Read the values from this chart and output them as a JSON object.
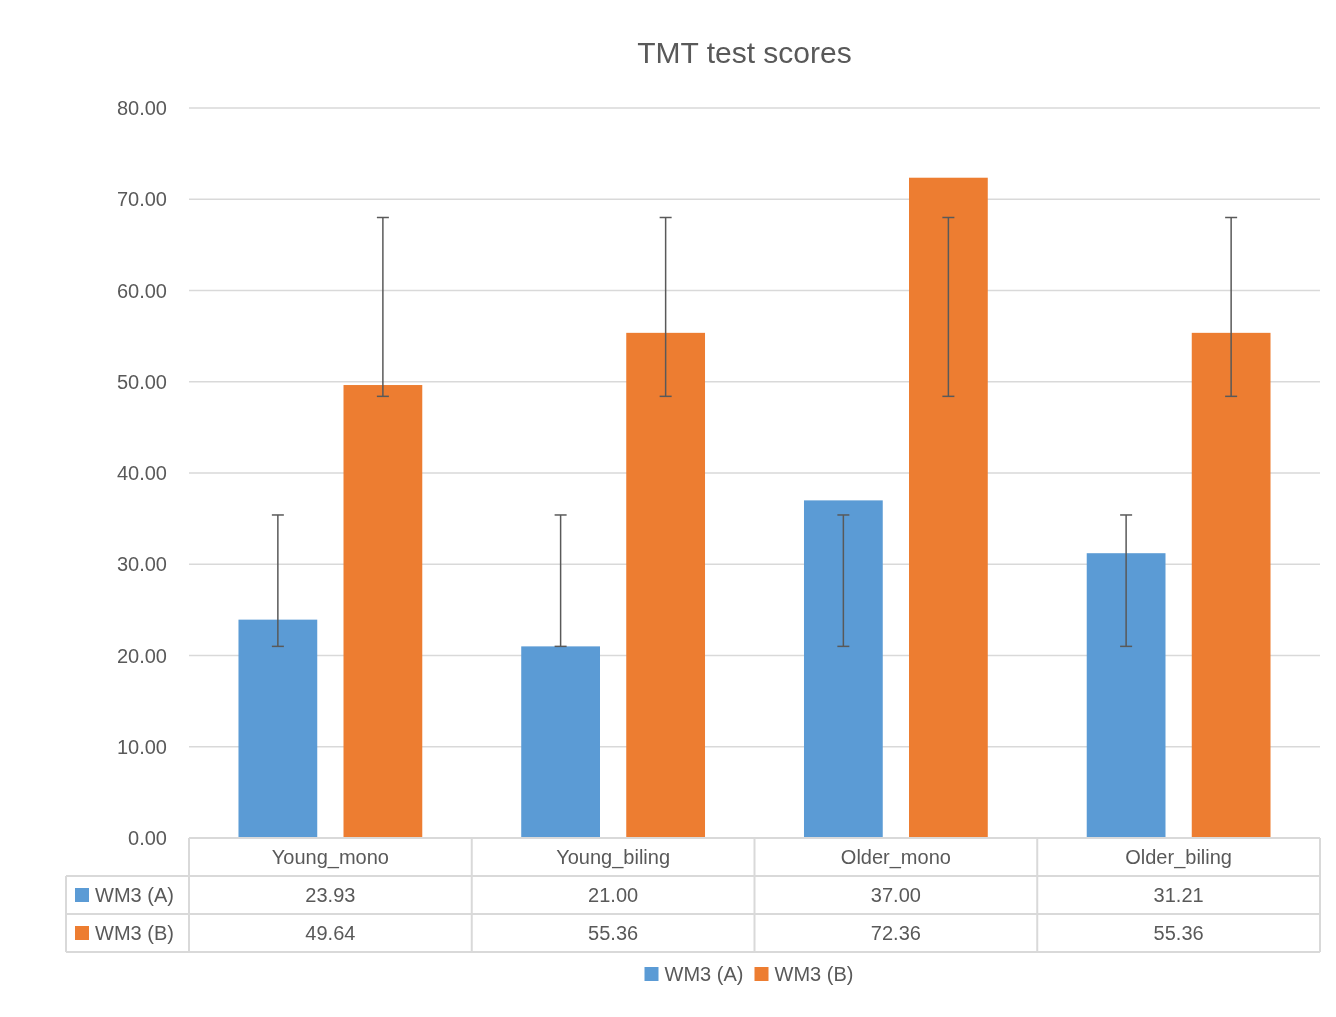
{
  "chart_data": {
    "type": "bar",
    "title": "TMT test scores",
    "categories": [
      "Young_mono",
      "Young_biling",
      "Older_mono",
      "Older_biling"
    ],
    "series": [
      {
        "name": "WM3 (A)",
        "color": "#5b9bd5",
        "values": [
          23.93,
          21.0,
          37.0,
          31.21
        ],
        "value_labels": [
          "23.93",
          "21.00",
          "37.00",
          "31.21"
        ],
        "errors": [
          [
            21.0,
            35.4
          ],
          [
            21.0,
            35.4
          ],
          [
            21.0,
            35.4
          ],
          [
            21.0,
            35.4
          ]
        ]
      },
      {
        "name": "WM3 (B)",
        "color": "#ed7d31",
        "values": [
          49.64,
          55.36,
          72.36,
          55.36
        ],
        "errors": [
          [
            48.4,
            68.0
          ],
          [
            48.4,
            68.0
          ],
          [
            48.4,
            68.0
          ],
          [
            48.4,
            68.0
          ]
        ]
      }
    ],
    "ylim": [
      0,
      80
    ],
    "yticks": [
      {
        "value": 0,
        "label": "0.00"
      },
      {
        "value": 10,
        "label": "10.00"
      },
      {
        "value": 20,
        "label": "20.00"
      },
      {
        "value": 30,
        "label": "30.00"
      },
      {
        "value": 40,
        "label": "40.00"
      },
      {
        "value": 50,
        "label": "50.00"
      },
      {
        "value": 60,
        "label": "60.00"
      },
      {
        "value": 70,
        "label": "70.00"
      },
      {
        "value": 80,
        "label": "80.00"
      }
    ],
    "grid": "y",
    "data_labels": true,
    "legend": "bottom"
  }
}
